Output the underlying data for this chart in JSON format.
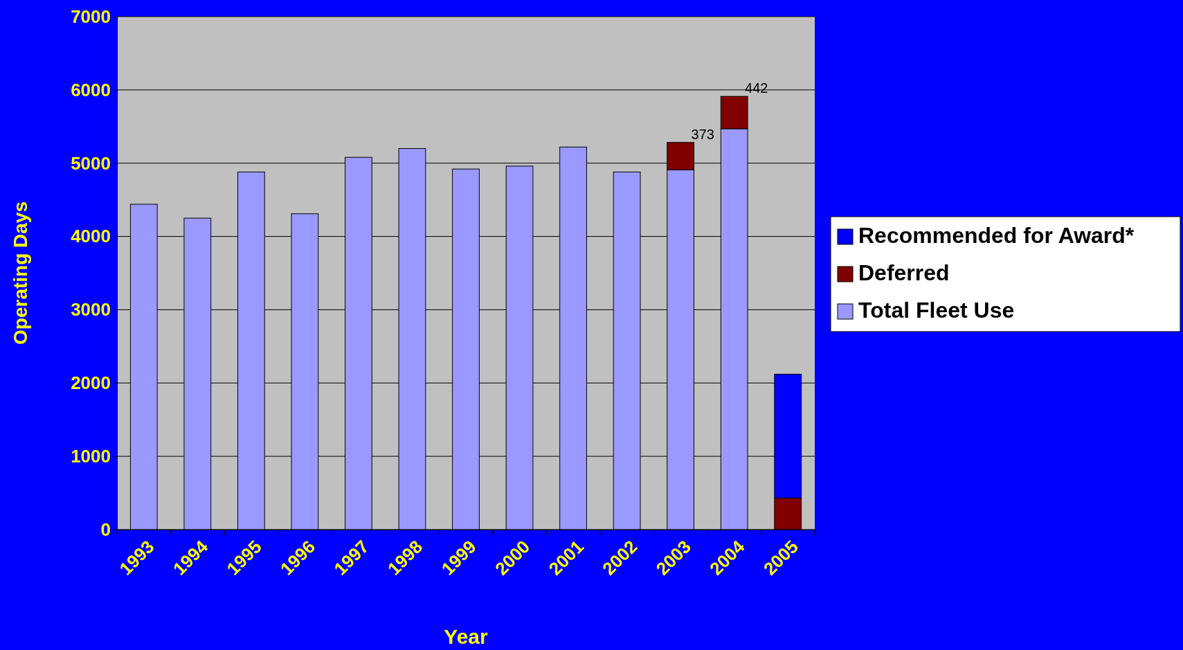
{
  "chart_data": {
    "type": "bar",
    "xlabel": "Year",
    "ylabel": "Operating Days",
    "categories": [
      "1993",
      "1994",
      "1995",
      "1996",
      "1997",
      "1998",
      "1999",
      "2000",
      "2001",
      "2002",
      "2003",
      "2004",
      "2005"
    ],
    "stacked": true,
    "ylim": [
      0,
      7000
    ],
    "yticks": [
      0,
      1000,
      2000,
      3000,
      4000,
      5000,
      6000,
      7000
    ],
    "grid": "y",
    "legend": "right",
    "series": [
      {
        "name": "Total Fleet Use",
        "color": "#9999ff",
        "values": [
          4440,
          4250,
          4880,
          4310,
          5080,
          5200,
          4920,
          4960,
          5220,
          4880,
          4910,
          5470,
          null
        ]
      },
      {
        "name": "Deferred",
        "color": "#800000",
        "values": [
          null,
          null,
          null,
          null,
          null,
          null,
          null,
          null,
          null,
          null,
          373,
          442,
          430
        ],
        "value_labels": [
          null,
          null,
          null,
          null,
          null,
          null,
          null,
          null,
          null,
          null,
          "373",
          "442",
          null
        ]
      },
      {
        "name": "Recommended for Award*",
        "color": "#0000ff",
        "values": [
          null,
          null,
          null,
          null,
          null,
          null,
          null,
          null,
          null,
          null,
          null,
          null,
          1690
        ]
      }
    ]
  }
}
